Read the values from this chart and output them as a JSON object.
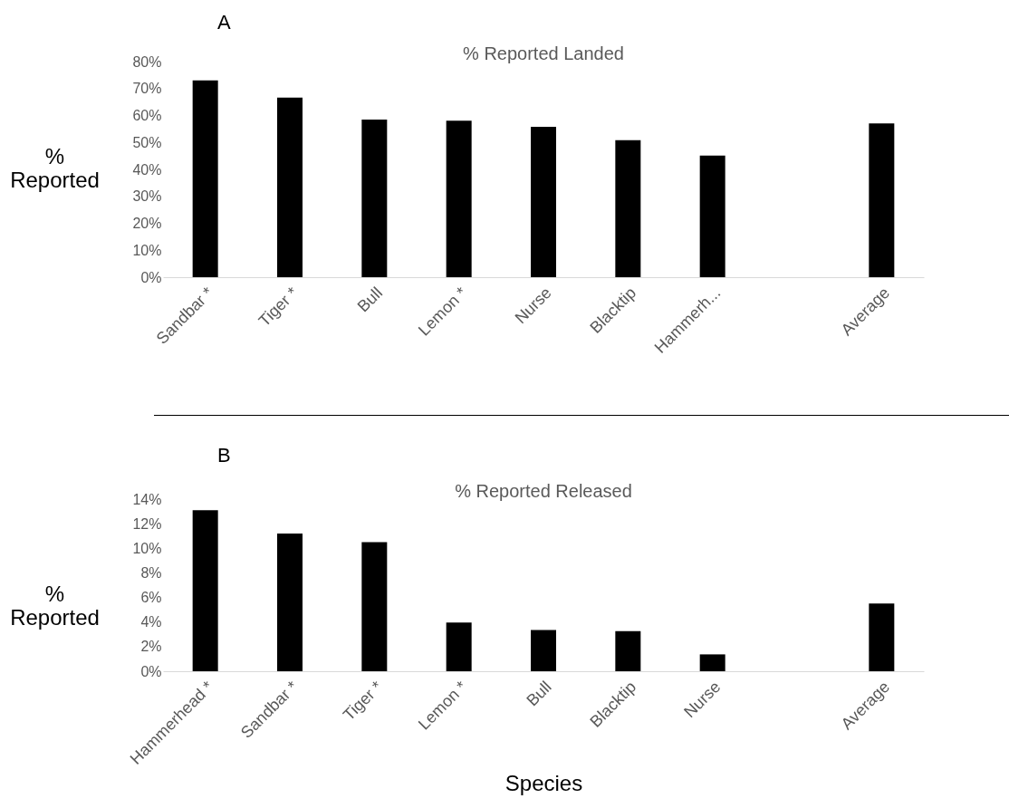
{
  "chart_data": [
    {
      "type": "bar",
      "title": "% Reported Landed",
      "ylabel": "% Reported",
      "annotations": [
        "A"
      ],
      "categories": [
        "Sandbar *",
        "Tiger *",
        "Bull",
        "Lemon *",
        "Nurse",
        "Blacktip",
        "Hammerh...",
        null,
        "Average"
      ],
      "values": [
        73,
        66.6,
        58.5,
        58.1,
        55.8,
        50.8,
        45.1,
        null,
        57.1
      ],
      "color": "#000000",
      "ylim": [
        0,
        80
      ],
      "yticks": [
        {
          "value": 0,
          "label": "0%"
        },
        {
          "value": 10,
          "label": "10%"
        },
        {
          "value": 20,
          "label": "20%"
        },
        {
          "value": 30,
          "label": "30%"
        },
        {
          "value": 40,
          "label": "40%"
        },
        {
          "value": 50,
          "label": "50%"
        },
        {
          "value": 60,
          "label": "60%"
        },
        {
          "value": 70,
          "label": "70%"
        },
        {
          "value": 80,
          "label": "80%"
        }
      ],
      "grid": false
    },
    {
      "type": "bar",
      "title": "% Reported Released",
      "ylabel": "% Reported",
      "xlabel": "Species",
      "annotations": [
        "B"
      ],
      "categories": [
        "Hammerhead *",
        "Sandbar *",
        "Tiger *",
        "Lemon *",
        "Bull",
        "Blacktip",
        "Nurse",
        null,
        "Average"
      ],
      "values": [
        13.1,
        11.2,
        10.5,
        3.96,
        3.35,
        3.26,
        1.37,
        null,
        5.5
      ],
      "color": "#000000",
      "ylim": [
        0,
        14
      ],
      "yticks": [
        {
          "value": 0,
          "label": "0%"
        },
        {
          "value": 2,
          "label": "2%"
        },
        {
          "value": 4,
          "label": "4%"
        },
        {
          "value": 6,
          "label": "6%"
        },
        {
          "value": 8,
          "label": "8%"
        },
        {
          "value": 10,
          "label": "10%"
        },
        {
          "value": 12,
          "label": "12%"
        },
        {
          "value": 14,
          "label": "14%"
        }
      ],
      "grid": false
    }
  ]
}
